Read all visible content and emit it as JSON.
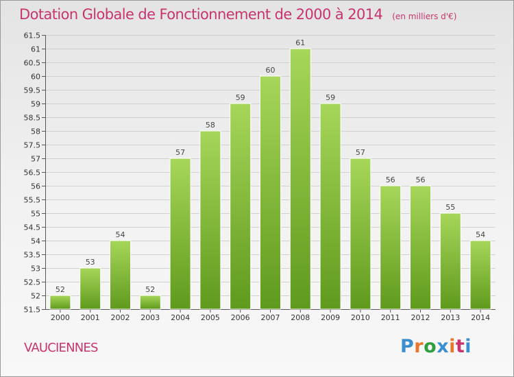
{
  "title": "Dotation Globale de Fonctionnement de 2000 à 2014",
  "subtitle": "(en milliers d'€)",
  "commune": "VAUCIENNES",
  "logo": {
    "text": "Proxiti",
    "colors": [
      "#3a8fd1",
      "#e8762c",
      "#2e9e3e",
      "#3a8fd1",
      "#e8762c",
      "#c8346e",
      "#3a8fd1"
    ]
  },
  "colors": {
    "bar_light": "#a6d65a",
    "bar_dark": "#5f9a1c",
    "bar_edge": "#ffffff",
    "title": "#c8346e"
  },
  "chart_data": {
    "type": "bar",
    "title": "Dotation Globale de Fonctionnement de 2000 à 2014",
    "subtitle": "(en milliers d'€)",
    "xlabel": "",
    "ylabel": "",
    "ylim": [
      51.5,
      61.5
    ],
    "ytick_step": 0.5,
    "grid": true,
    "categories": [
      "2000",
      "2001",
      "2002",
      "2003",
      "2004",
      "2005",
      "2006",
      "2007",
      "2008",
      "2009",
      "2010",
      "2011",
      "2012",
      "2013",
      "2014"
    ],
    "values": [
      52,
      53,
      54,
      52,
      57,
      58,
      59,
      60,
      61,
      59,
      57,
      56,
      56,
      55,
      54
    ]
  }
}
